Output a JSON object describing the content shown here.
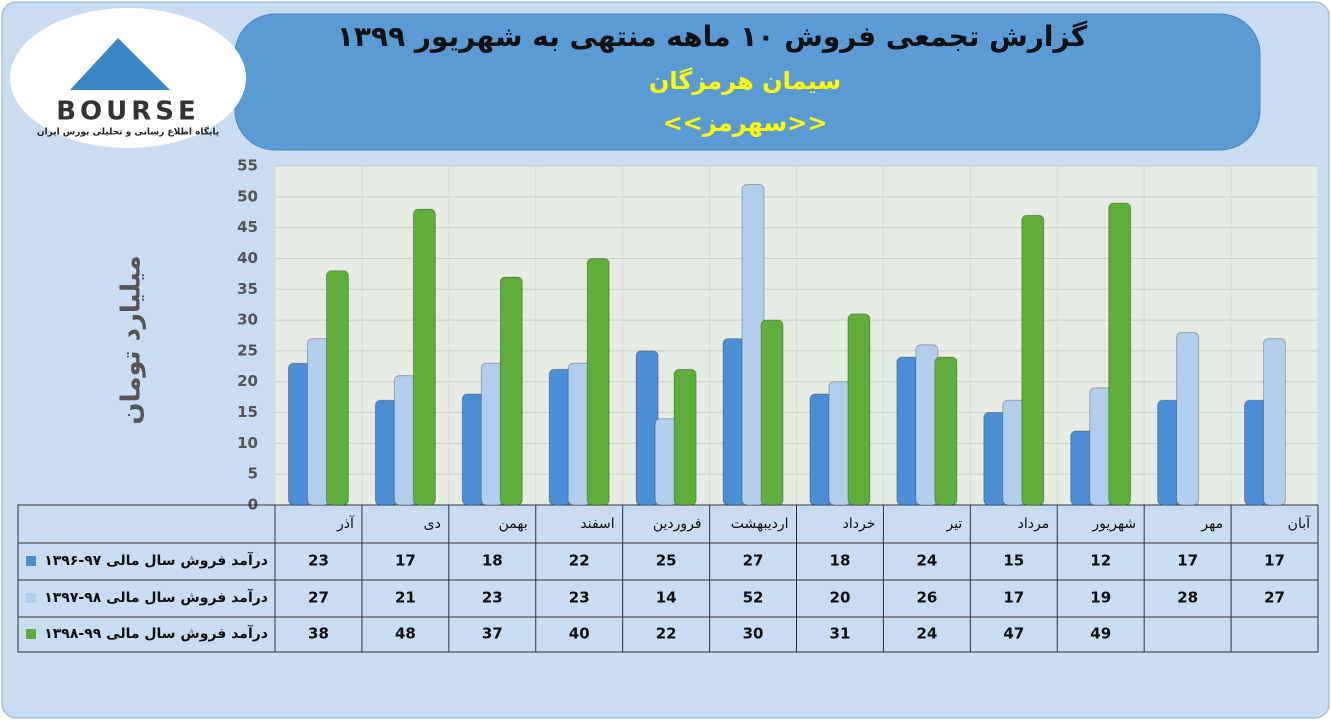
{
  "logo": {
    "name": "BOURSE",
    "tagline": "پایگاه اطلاع رسانی و تحلیلی بورس ایران"
  },
  "chart_data": {
    "type": "bar",
    "title": "گزارش تجمعی فروش ۱۰ ماهه منتهی به شهریور ۱۳۹۹",
    "subtitle": "سیمان هرمزگان",
    "annotation": "<<سهرمز>>",
    "y_label": "میلیارد تومان",
    "categories": [
      "آذر",
      "دی",
      "بهمن",
      "اسفند",
      "فروردین",
      "اردیبهشت",
      "خرداد",
      "تیر",
      "مرداد",
      "شهریور",
      "مهر",
      "آبان"
    ],
    "series": [
      {
        "name": "درآمد فروش سال مالی ۹۷-۱۳۹۶",
        "color": "#4a8fd6",
        "values": [
          23,
          17,
          18,
          22,
          25,
          27,
          18,
          24,
          15,
          12,
          17,
          17
        ]
      },
      {
        "name": "درآمد فروش سال مالی ۹۸-۱۳۹۷",
        "color": "#b3cdec",
        "values": [
          27,
          21,
          23,
          23,
          14,
          52,
          20,
          26,
          17,
          19,
          28,
          27
        ]
      },
      {
        "name": "درآمد فروش سال مالی ۹۹-۱۳۹۸",
        "color": "#5fae3c",
        "values": [
          38,
          48,
          37,
          40,
          22,
          30,
          31,
          24,
          47,
          49,
          null,
          null
        ]
      }
    ],
    "ylim": [
      0,
      55
    ],
    "yticks": [
      0,
      5,
      10,
      15,
      20,
      25,
      30,
      35,
      40,
      45,
      50,
      55
    ],
    "grid": true
  }
}
